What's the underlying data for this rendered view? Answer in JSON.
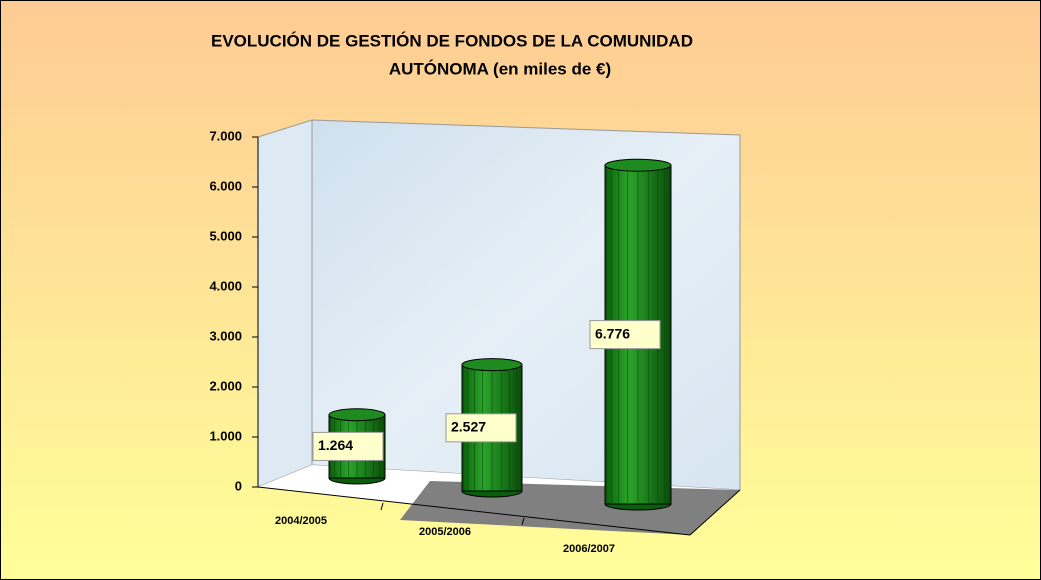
{
  "chart_data": {
    "type": "bar",
    "title": [
      "EVOLUCIÓN DE GESTIÓN DE FONDOS DE LA COMUNIDAD",
      "AUTÓNOMA (en miles de €)"
    ],
    "categories": [
      "2004/2005",
      "2005/2006",
      "2006/2007"
    ],
    "values": [
      1264,
      2527,
      6776
    ],
    "value_labels": [
      "1.264",
      "2.527",
      "6.776"
    ],
    "color": "#1f8a1f",
    "ylim": [
      0,
      7000
    ],
    "yticks": [
      0,
      {
        "value": 1000,
        "label": "1.000"
      },
      {
        "value": 2000,
        "label": "2.000"
      },
      {
        "value": 3000,
        "label": "3.000"
      },
      {
        "value": 4000,
        "label": "4.000"
      },
      {
        "value": 5000,
        "label": "5.000"
      },
      {
        "value": 6000,
        "label": "6.000"
      },
      {
        "value": 7000,
        "label": "7.000"
      }
    ]
  }
}
